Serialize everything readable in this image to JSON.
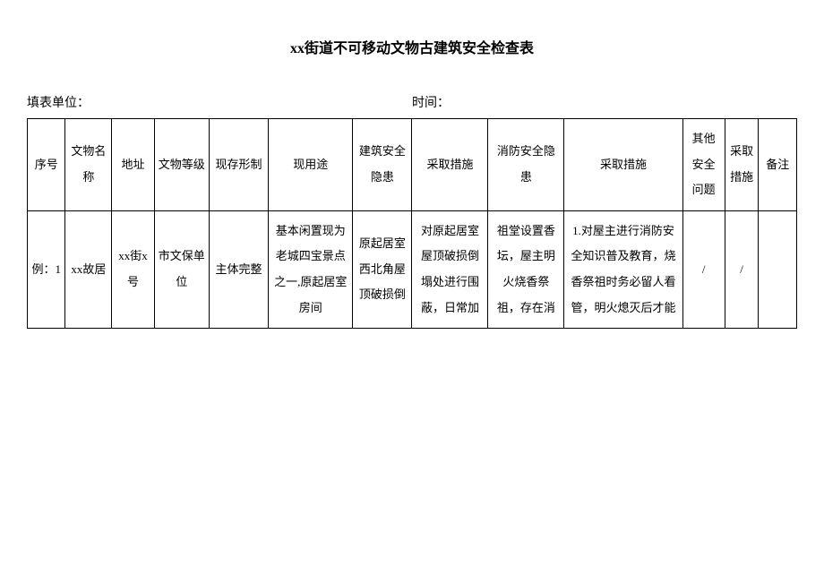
{
  "title": "xx街道不可移动文物古建筑安全检查表",
  "header": {
    "unit_label": "填表单位：",
    "time_label": "时间："
  },
  "columns": {
    "seq": "序号",
    "name": "文物名称",
    "addr": "地址",
    "grade": "文物等级",
    "form": "现存形制",
    "use": "现用途",
    "bsafe": "建筑安全隐患",
    "bact": "采取措施",
    "fsafe": "消防安全隐患",
    "fact": "采取措施",
    "other": "其他安全问题",
    "oact": "采取措施",
    "note": "备注"
  },
  "rows": [
    {
      "seq": "例：1",
      "name": "xx故居",
      "addr": "xx街x号",
      "grade": "市文保单位",
      "form": "主体完整",
      "use": "基本闲置现为老城四宝景点之一,原起居室房间",
      "bsafe": "原起居室西北角屋顶破损倒",
      "bact": "对原起居室屋顶破损倒塌处进行围蔽，日常加",
      "fsafe": "祖堂设置香坛，屋主明火烧香祭祖，存在消",
      "fact": "1.对屋主进行消防安全知识普及教育，烧香祭祖时务必留人看管，明火熄灭后才能",
      "other": "/",
      "oact": "/",
      "note": ""
    }
  ]
}
